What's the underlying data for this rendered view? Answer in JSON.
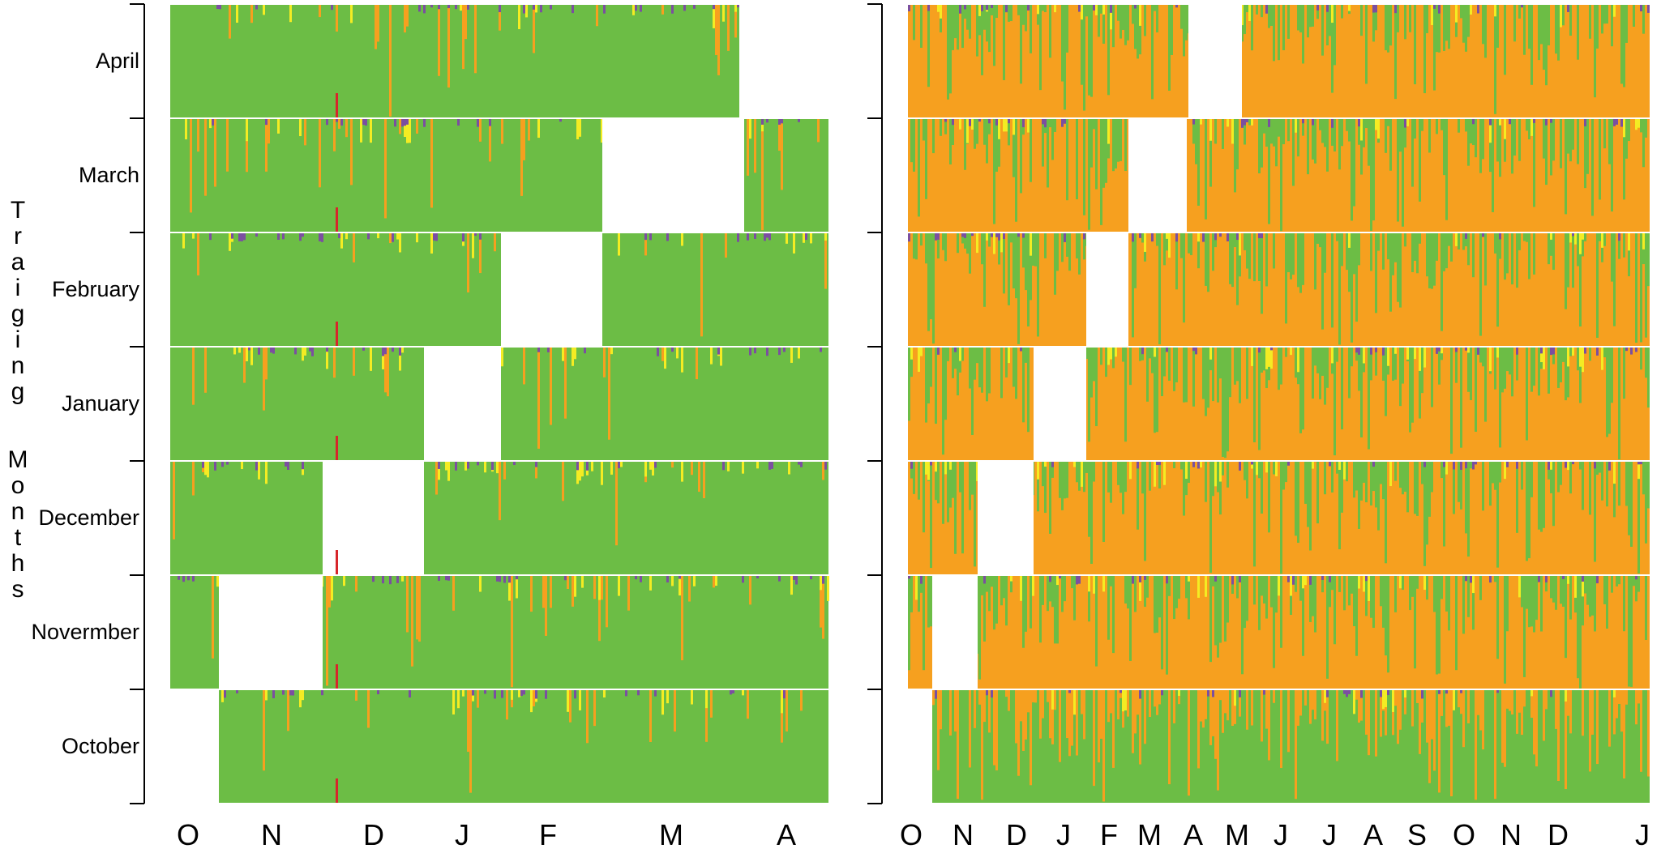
{
  "y_axis_title": "Traiging Months",
  "row_labels": [
    "April",
    "March",
    "February",
    "January",
    "December",
    "Novermber",
    "October"
  ],
  "left_x_ticks": [
    "O",
    "N",
    "D",
    "J",
    "F",
    "M",
    "A"
  ],
  "right_x_ticks": [
    "O",
    "N",
    "D",
    "J",
    "F",
    "M",
    "A",
    "M",
    "J",
    "J",
    "A",
    "S",
    "O",
    "N",
    "D",
    "J"
  ],
  "colors": {
    "green": "#6cbd45",
    "orange": "#f6a01f",
    "yellow": "#f4ec23",
    "purple": "#7b4fa0",
    "red": "#d7262b",
    "white": "#ffffff"
  },
  "chart_data": [
    {
      "type": "heatmap",
      "panel": "left",
      "title": "",
      "xlabel": "",
      "ylabel": "Traiging Months",
      "x_ticks": [
        "O",
        "N",
        "D",
        "J",
        "F",
        "M",
        "A"
      ],
      "rows": [
        "April",
        "March",
        "February",
        "January",
        "December",
        "Novermber",
        "October"
      ],
      "row_data": [
        {
          "row": "April",
          "data_months": [
            "O",
            "N",
            "D",
            "J",
            "F",
            "M"
          ],
          "blank_month": "A",
          "dominant": "green",
          "secondary": "orange"
        },
        {
          "row": "March",
          "data_months": [
            "O",
            "N",
            "D",
            "J",
            "F",
            "A"
          ],
          "blank_month": "M",
          "dominant": "green",
          "secondary": "orange"
        },
        {
          "row": "February",
          "data_months": [
            "O",
            "N",
            "D",
            "J",
            "M",
            "A"
          ],
          "blank_month": "F",
          "dominant": "green",
          "secondary": "orange"
        },
        {
          "row": "January",
          "data_months": [
            "O",
            "N",
            "D",
            "F",
            "M",
            "A"
          ],
          "blank_month": "J",
          "dominant": "green",
          "secondary": "orange"
        },
        {
          "row": "December",
          "data_months": [
            "O",
            "N",
            "J",
            "F",
            "M",
            "A"
          ],
          "blank_month": "D",
          "dominant": "green",
          "secondary": "orange"
        },
        {
          "row": "Novermber",
          "data_months": [
            "O",
            "D",
            "J",
            "F",
            "M",
            "A"
          ],
          "blank_month": "N",
          "dominant": "green",
          "secondary": "orange"
        },
        {
          "row": "October",
          "data_months": [
            "N",
            "D",
            "J",
            "F",
            "M",
            "A"
          ],
          "blank_month": "O",
          "dominant": "green",
          "secondary": "orange"
        }
      ]
    },
    {
      "type": "heatmap",
      "panel": "right",
      "title": "",
      "xlabel": "",
      "ylabel": "",
      "x_ticks": [
        "O",
        "N",
        "D",
        "J",
        "F",
        "M",
        "A",
        "M",
        "J",
        "J",
        "A",
        "S",
        "O",
        "N",
        "D",
        "J"
      ],
      "rows": [
        "April",
        "March",
        "February",
        "January",
        "December",
        "Novermber",
        "October"
      ],
      "row_data": [
        {
          "row": "April",
          "blank_month_index": 6,
          "dominant": "orange",
          "secondary": "green"
        },
        {
          "row": "March",
          "blank_month_index": 5,
          "dominant": "orange",
          "secondary": "green"
        },
        {
          "row": "February",
          "blank_month_index": 4,
          "dominant": "orange",
          "secondary": "green"
        },
        {
          "row": "January",
          "blank_month_index": 3,
          "dominant": "orange",
          "secondary": "green"
        },
        {
          "row": "December",
          "blank_month_index": 2,
          "dominant": "orange",
          "secondary": "green"
        },
        {
          "row": "Novermber",
          "blank_month_index": 1,
          "dominant": "orange",
          "secondary": "green"
        },
        {
          "row": "October",
          "blank_month_index": 0,
          "dominant": "green",
          "secondary": "orange"
        }
      ]
    }
  ]
}
